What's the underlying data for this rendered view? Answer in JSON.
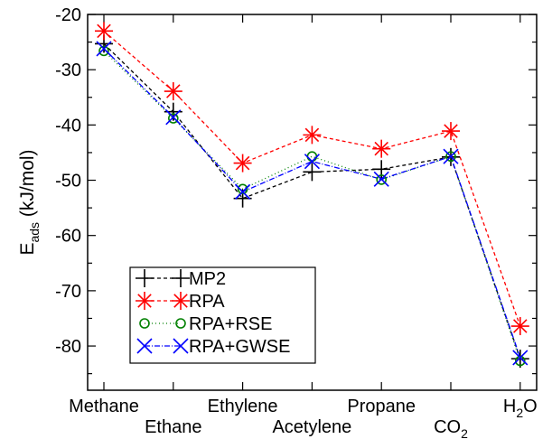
{
  "chart_data": {
    "type": "line",
    "title": "",
    "ylabel_main": "E",
    "ylabel_sub": "ads",
    "ylabel_unit": " (kJ/mol)",
    "ylim": [
      -88,
      -20
    ],
    "yticks": [
      -20,
      -30,
      -40,
      -50,
      -60,
      -70,
      -80
    ],
    "grid": false,
    "legend_position": "lower-left",
    "categories": [
      {
        "main": "Methane",
        "sub": "",
        "tail": "",
        "row": 0
      },
      {
        "main": "Ethane",
        "sub": "",
        "tail": "",
        "row": 1
      },
      {
        "main": "Ethylene",
        "sub": "",
        "tail": "",
        "row": 0
      },
      {
        "main": "Acetylene",
        "sub": "",
        "tail": "",
        "row": 1
      },
      {
        "main": "Propane",
        "sub": "",
        "tail": "",
        "row": 0
      },
      {
        "main": "CO",
        "sub": "2",
        "tail": "",
        "row": 1
      },
      {
        "main": "H",
        "sub": "2",
        "tail": "O",
        "row": 0
      }
    ],
    "series": [
      {
        "name": "MP2",
        "color": "#000000",
        "marker": "plus",
        "dash": "4,3",
        "values": [
          -25.3,
          -37.6,
          -53.3,
          -48.5,
          -48.0,
          -45.8,
          -82.3
        ]
      },
      {
        "name": "RPA",
        "color": "#ff0000",
        "marker": "star",
        "dash": "4,3",
        "values": [
          -23.0,
          -33.9,
          -46.9,
          -41.8,
          -44.3,
          -41.1,
          -76.4
        ]
      },
      {
        "name": "RPA+RSE",
        "color": "#008000",
        "marker": "circle",
        "dash": "1,3",
        "values": [
          -26.6,
          -38.8,
          -51.6,
          -45.7,
          -49.9,
          -45.7,
          -82.7
        ]
      },
      {
        "name": "RPA+GWSE",
        "color": "#0000ff",
        "marker": "x",
        "dash": "6,2,1,2",
        "values": [
          -26.2,
          -38.6,
          -52.1,
          -46.6,
          -49.8,
          -45.7,
          -82.1
        ]
      }
    ]
  }
}
